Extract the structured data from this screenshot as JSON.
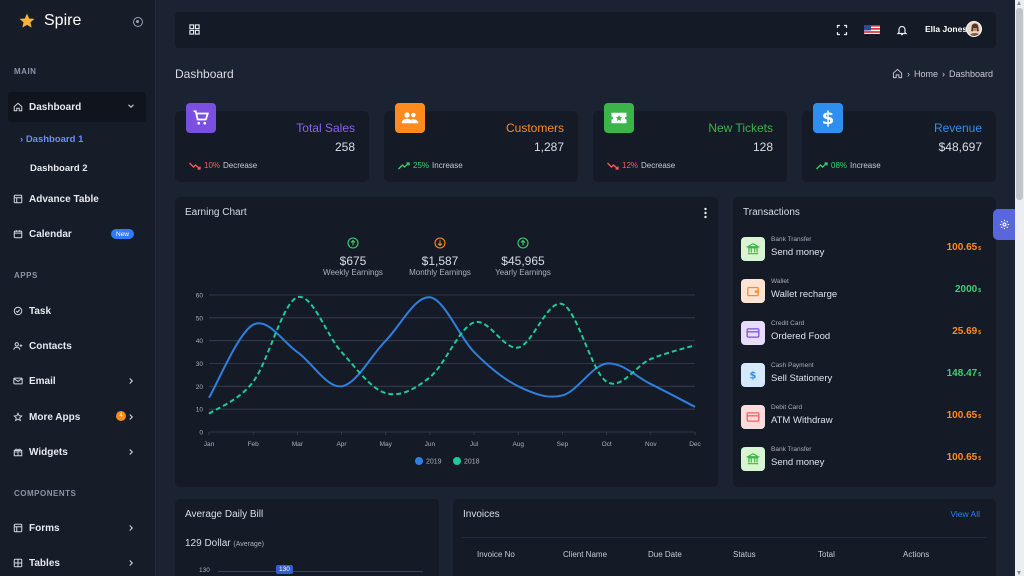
{
  "brand": {
    "name": "Spire"
  },
  "sidebar": {
    "sections": {
      "main": "MAIN",
      "apps": "APPS",
      "components": "COMPONENTS"
    },
    "dashboard": "Dashboard",
    "dashboard_sub": [
      "Dashboard 1",
      "Dashboard 2"
    ],
    "advance_table": "Advance Table",
    "calendar": "Calendar",
    "calendar_badge": "New",
    "task": "Task",
    "contacts": "Contacts",
    "email": "Email",
    "more_apps": "More Apps",
    "more_apps_badge": "4",
    "widgets": "Widgets",
    "forms": "Forms",
    "tables": "Tables"
  },
  "header": {
    "user_name": "Ella Jones"
  },
  "page": {
    "title": "Dashboard",
    "breadcrumb": [
      "Home",
      "Dashboard"
    ]
  },
  "stats": [
    {
      "label": "Total Sales",
      "value": "258",
      "trend_pct": "10%",
      "trend_text": "Decrease",
      "color": "#7b4fe0",
      "trend_color": "#ff5b5b"
    },
    {
      "label": "Customers",
      "value": "1,287",
      "trend_pct": "25%",
      "trend_text": "Increase",
      "color": "#ff8b1f",
      "trend_color": "#3ecf6e"
    },
    {
      "label": "New Tickets",
      "value": "128",
      "trend_pct": "12%",
      "trend_text": "Decrease",
      "color": "#3bb54a",
      "trend_color": "#ff5b5b"
    },
    {
      "label": "Revenue",
      "value": "$48,697",
      "trend_pct": "08%",
      "trend_text": "Increase",
      "color": "#2f8ff0",
      "trend_color": "#3ecf6e"
    }
  ],
  "earning_chart": {
    "title": "Earning Chart",
    "summary": [
      {
        "value": "$675",
        "label": "Weekly Earnings"
      },
      {
        "value": "$1,587",
        "label": "Monthly Earnings"
      },
      {
        "value": "$45,965",
        "label": "Yearly Earnings"
      }
    ]
  },
  "chart_data": {
    "type": "line",
    "categories": [
      "Jan",
      "Feb",
      "Mar",
      "Apr",
      "May",
      "Jun",
      "Jul",
      "Aug",
      "Sep",
      "Oct",
      "Nov",
      "Dec"
    ],
    "yticks": [
      0,
      10,
      20,
      30,
      40,
      50,
      60
    ],
    "ylim": [
      0,
      60
    ],
    "grid": true,
    "legend_position": "bottom",
    "series": [
      {
        "name": "2019",
        "values": [
          15,
          47,
          35,
          20,
          40,
          59,
          35,
          20,
          16,
          30,
          21,
          11
        ],
        "color": "#2f7fe0",
        "style": "solid"
      },
      {
        "name": "2018",
        "values": [
          8,
          22,
          59,
          35,
          17,
          24,
          48,
          37,
          56,
          22,
          32,
          38
        ],
        "color": "#20c997",
        "style": "dashed"
      }
    ]
  },
  "transactions": {
    "title": "Transactions",
    "items": [
      {
        "category": "Bank Transfer",
        "name": "Send money",
        "amount": "100.65",
        "currency": "$",
        "color": "#ff8b1f",
        "icon_bg": "#d8f5d3",
        "icon_fg": "#3bb54a"
      },
      {
        "category": "Wallet",
        "name": "Wallet recharge",
        "amount": "2000",
        "currency": "$",
        "color": "#3ecf6e",
        "icon_bg": "#ffe3d4",
        "icon_fg": "#ff8b1f"
      },
      {
        "category": "Credit Card",
        "name": "Ordered Food",
        "amount": "25.69",
        "currency": "$",
        "color": "#ff8b1f",
        "icon_bg": "#e7dcfb",
        "icon_fg": "#7b4fe0"
      },
      {
        "category": "Cash Payment",
        "name": "Sell Stationery",
        "amount": "148.47",
        "currency": "$",
        "color": "#3ecf6e",
        "icon_bg": "#d4e9fb",
        "icon_fg": "#2f8ff0"
      },
      {
        "category": "Debit Card",
        "name": "ATM Withdraw",
        "amount": "100.65",
        "currency": "$",
        "color": "#ff8b1f",
        "icon_bg": "#fbdcdc",
        "icon_fg": "#ff5b5b"
      },
      {
        "category": "Bank Transfer",
        "name": "Send money",
        "amount": "100.65",
        "currency": "$",
        "color": "#ff8b1f",
        "icon_bg": "#d8f5d3",
        "icon_fg": "#3bb54a"
      }
    ]
  },
  "avg_bill": {
    "title": "Average Daily Bill",
    "amount": "129 Dollar",
    "amount_note": "(Average)",
    "axis_label": "130",
    "marker": "130"
  },
  "invoices": {
    "title": "Invoices",
    "view_all": "View All",
    "columns": [
      "Invoice No",
      "Client Name",
      "Due Date",
      "Status",
      "Total",
      "Actions"
    ]
  }
}
